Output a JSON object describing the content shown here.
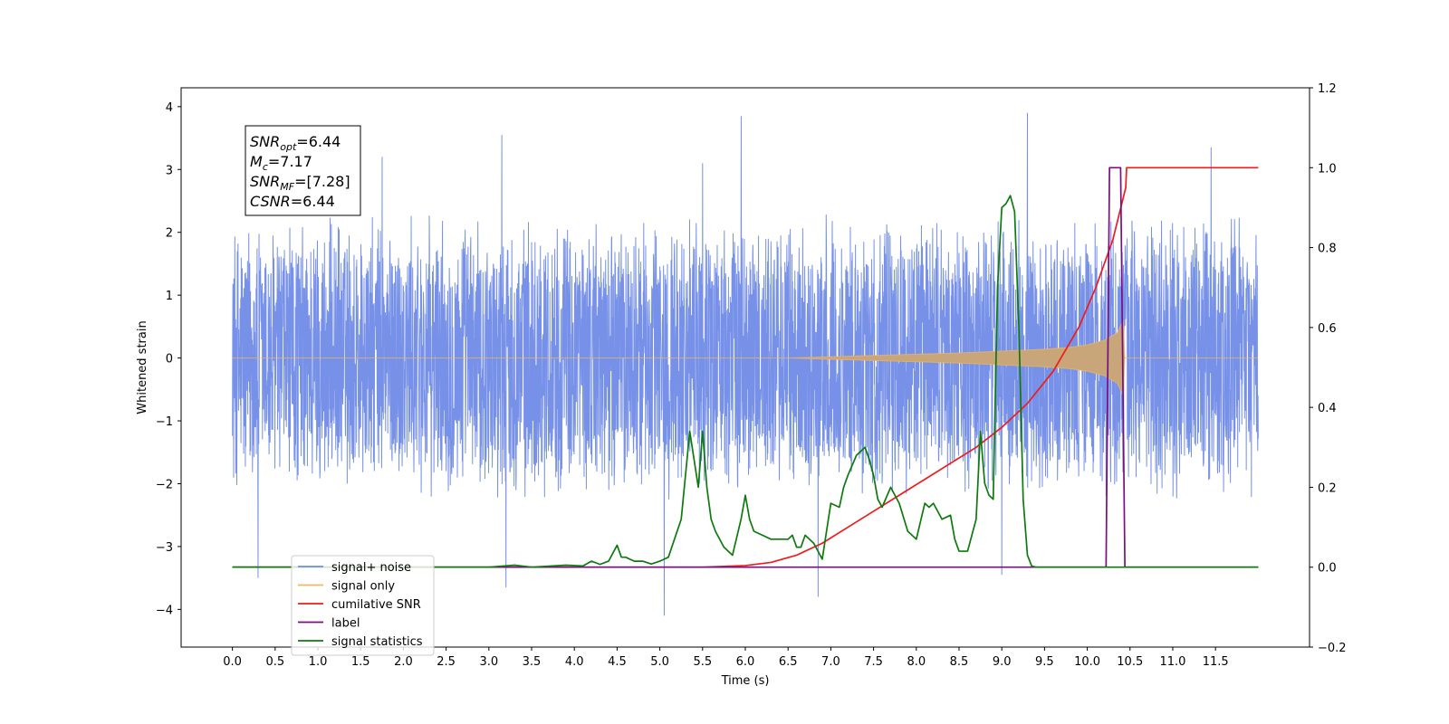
{
  "chart_data": {
    "type": "line",
    "xlabel": "Time (s)",
    "ylabel": "Whitened strain",
    "xlim": [
      -0.6,
      12.6
    ],
    "ylim": [
      -4.6,
      4.3
    ],
    "ylim_right": [
      -0.2,
      1.2
    ],
    "x_ticks": [
      0.0,
      0.5,
      1.0,
      1.5,
      2.0,
      2.5,
      3.0,
      3.5,
      4.0,
      4.5,
      5.0,
      5.5,
      6.0,
      6.5,
      7.0,
      7.5,
      8.0,
      8.5,
      9.0,
      9.5,
      10.0,
      10.5,
      11.0,
      11.5
    ],
    "x_tick_labels": [
      "0.0",
      "0.5",
      "1.0",
      "1.5",
      "2.0",
      "2.5",
      "3.0",
      "3.5",
      "4.0",
      "4.5",
      "5.0",
      "5.5",
      "6.0",
      "6.5",
      "7.0",
      "7.5",
      "8.0",
      "8.5",
      "9.0",
      "9.5",
      "10.0",
      "10.5",
      "11.0",
      "11.5"
    ],
    "y_ticks": [
      4,
      3,
      2,
      1,
      0,
      -1,
      -2,
      -3,
      -4
    ],
    "y_tick_labels": [
      "4",
      "3",
      "2",
      "1",
      "0",
      "−1",
      "−2",
      "−3",
      "−4"
    ],
    "y_right_ticks": [
      1.2,
      1.0,
      0.8,
      0.6,
      0.4,
      0.2,
      0.0,
      -0.2
    ],
    "y_right_tick_labels": [
      "1.2",
      "1.0",
      "0.8",
      "0.6",
      "0.4",
      "0.2",
      "0.0",
      "−0.2"
    ],
    "annotation": [
      {
        "name": "SNR",
        "sub": "opt",
        "value": "=6.44"
      },
      {
        "name": "M",
        "sub": "c",
        "value": "=7.17"
      },
      {
        "name": "SNR",
        "sub": "MF",
        "value": "=[7.28]"
      },
      {
        "name": "CSNR",
        "sub": "",
        "value": "=6.44"
      }
    ],
    "legend_position": "lower-left",
    "grid": false,
    "series": [
      {
        "name": "signal+ noise",
        "axis": "left",
        "color": "#6f8be6",
        "x_range": [
          0.0,
          12.0
        ],
        "envelope_upper_typical": 2.3,
        "envelope_lower_typical": -2.3,
        "peaks": [
          [
            1.75,
            3.2
          ],
          [
            3.15,
            3.55
          ],
          [
            5.5,
            3.1
          ],
          [
            5.95,
            3.85
          ],
          [
            9.3,
            3.9
          ],
          [
            11.45,
            3.35
          ]
        ],
        "troughs": [
          [
            0.3,
            -3.5
          ],
          [
            3.2,
            -3.65
          ],
          [
            5.05,
            -4.1
          ],
          [
            6.85,
            -3.8
          ],
          [
            9.0,
            -3.45
          ]
        ]
      },
      {
        "name": "signal only",
        "axis": "left",
        "color": "#f4b65c",
        "x": [
          0.0,
          6.5,
          7.0,
          7.5,
          8.0,
          8.5,
          9.0,
          9.5,
          9.8,
          10.0,
          10.2,
          10.35,
          10.42,
          10.44,
          12.0
        ],
        "amplitude": [
          0.0,
          0.0,
          0.02,
          0.04,
          0.06,
          0.08,
          0.11,
          0.14,
          0.17,
          0.21,
          0.28,
          0.4,
          0.6,
          0.0,
          0.0
        ]
      },
      {
        "name": "cumilative SNR",
        "axis": "right",
        "color": "#ee1c1c",
        "x": [
          0.0,
          5.5,
          6.0,
          6.3,
          6.6,
          6.9,
          7.2,
          7.5,
          7.8,
          8.1,
          8.4,
          8.7,
          9.0,
          9.3,
          9.6,
          9.9,
          10.1,
          10.3,
          10.45,
          10.46,
          12.0
        ],
        "y": [
          0.0,
          0.0,
          0.004,
          0.012,
          0.03,
          0.06,
          0.1,
          0.14,
          0.18,
          0.22,
          0.26,
          0.3,
          0.35,
          0.41,
          0.49,
          0.6,
          0.7,
          0.82,
          0.95,
          1.0,
          1.0
        ]
      },
      {
        "name": "label",
        "axis": "right",
        "color": "#7a0f80",
        "x": [
          0.0,
          10.22,
          10.26,
          10.27,
          10.38,
          10.39,
          10.44,
          12.0
        ],
        "y": [
          0.0,
          0.0,
          1.0,
          1.0,
          1.0,
          1.0,
          0.0,
          0.0
        ]
      },
      {
        "name": "signal statistics",
        "axis": "right",
        "color": "#0e7a0e",
        "x": [
          0.0,
          3.0,
          3.3,
          3.5,
          3.9,
          4.1,
          4.2,
          4.3,
          4.4,
          4.5,
          4.55,
          4.6,
          4.7,
          4.8,
          4.9,
          5.0,
          5.1,
          5.25,
          5.35,
          5.45,
          5.5,
          5.55,
          5.6,
          5.65,
          5.75,
          5.85,
          5.95,
          6.0,
          6.05,
          6.1,
          6.2,
          6.3,
          6.4,
          6.5,
          6.55,
          6.6,
          6.65,
          6.7,
          6.8,
          6.9,
          7.0,
          7.1,
          7.15,
          7.2,
          7.3,
          7.4,
          7.45,
          7.5,
          7.55,
          7.6,
          7.7,
          7.75,
          7.8,
          7.9,
          8.0,
          8.1,
          8.15,
          8.2,
          8.3,
          8.4,
          8.45,
          8.5,
          8.6,
          8.7,
          8.75,
          8.8,
          8.85,
          8.9,
          8.95,
          9.0,
          9.05,
          9.1,
          9.15,
          9.2,
          9.25,
          9.3,
          9.35,
          9.4,
          9.45,
          9.5,
          9.55,
          9.6,
          9.7,
          10.0,
          12.0
        ],
        "y": [
          0.0,
          0.0,
          0.005,
          0.0,
          0.005,
          0.003,
          0.015,
          0.007,
          0.015,
          0.055,
          0.025,
          0.025,
          0.015,
          0.015,
          0.008,
          0.015,
          0.025,
          0.12,
          0.34,
          0.2,
          0.34,
          0.2,
          0.12,
          0.09,
          0.05,
          0.03,
          0.12,
          0.18,
          0.12,
          0.09,
          0.08,
          0.07,
          0.07,
          0.07,
          0.08,
          0.05,
          0.05,
          0.08,
          0.06,
          0.02,
          0.16,
          0.15,
          0.2,
          0.23,
          0.28,
          0.3,
          0.27,
          0.23,
          0.17,
          0.15,
          0.2,
          0.18,
          0.16,
          0.09,
          0.07,
          0.16,
          0.15,
          0.16,
          0.12,
          0.13,
          0.07,
          0.04,
          0.04,
          0.12,
          0.34,
          0.21,
          0.18,
          0.17,
          0.7,
          0.9,
          0.91,
          0.93,
          0.89,
          0.6,
          0.17,
          0.03,
          0.003,
          0.0,
          0.0,
          0.0,
          0.0,
          0.0,
          0.0,
          0.0,
          0.0
        ]
      }
    ],
    "legend": [
      {
        "label": "signal+ noise",
        "color": "#6f8be6"
      },
      {
        "label": "signal only",
        "color": "#f4b65c"
      },
      {
        "label": "cumilative SNR",
        "color": "#ee1c1c"
      },
      {
        "label": "label",
        "color": "#7a0f80"
      },
      {
        "label": "signal statistics",
        "color": "#0e7a0e"
      }
    ]
  }
}
